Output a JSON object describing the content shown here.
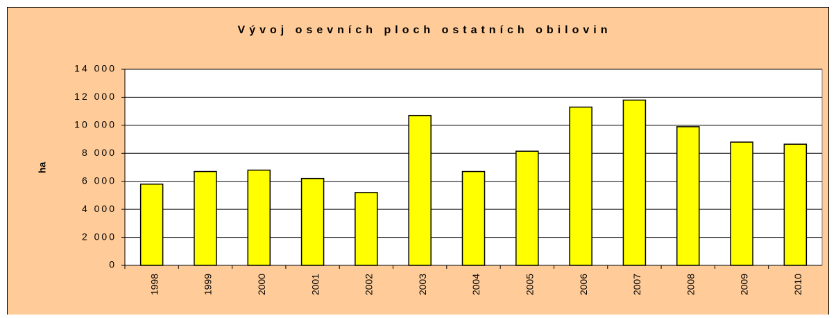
{
  "chart_data": {
    "type": "bar",
    "title": "Vývoj osevních ploch ostatních obilovin",
    "ylabel": "ha",
    "categories": [
      "1998",
      "1999",
      "2000",
      "2001",
      "2002",
      "2003",
      "2004",
      "2005",
      "2006",
      "2007",
      "2008",
      "2009",
      "2010"
    ],
    "values": [
      5800,
      6700,
      6800,
      6200,
      5200,
      10700,
      6700,
      8150,
      11300,
      11800,
      9900,
      8800,
      8650
    ],
    "color": "#ffff00",
    "ylim": [
      0,
      14000
    ],
    "yticks": [
      0,
      {
        "value": 2000,
        "label": "2 000"
      },
      {
        "value": 4000,
        "label": "4 000"
      },
      {
        "value": 6000,
        "label": "6 000"
      },
      {
        "value": 8000,
        "label": "8 000"
      },
      {
        "value": 10000,
        "label": "10 000"
      },
      {
        "value": 12000,
        "label": "12 000"
      },
      {
        "value": 14000,
        "label": "14 000"
      }
    ],
    "grid": true
  }
}
